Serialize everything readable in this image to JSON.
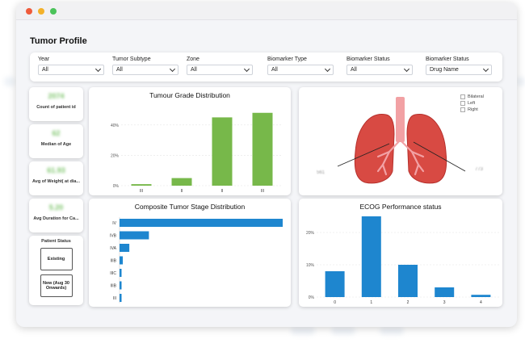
{
  "window": {
    "dots": [
      "#ef5b3b",
      "#f3b12a",
      "#4bc35a"
    ]
  },
  "page": {
    "title": "Tumor Profile"
  },
  "filters": [
    {
      "label": "Year",
      "value": "All"
    },
    {
      "label": "Tumor Subtype",
      "value": "All"
    },
    {
      "label": "Zone",
      "value": "All"
    },
    {
      "label": "Biomarker Type",
      "value": "All"
    },
    {
      "label": "Biomarker Status",
      "value": "All"
    },
    {
      "label": "Biomarker Status",
      "value": "Drug Name"
    }
  ],
  "kpis": [
    {
      "value": "2074",
      "label": "Count of patient id"
    },
    {
      "value": "62",
      "label": "Median of Age"
    },
    {
      "value": "61.93",
      "label": "Avg of Weight( at dia..."
    },
    {
      "value": "5.20",
      "label": "Avg Duration for Ca..."
    }
  ],
  "patient_status": {
    "title": "Patient Status",
    "buttons": [
      "Existing",
      "New (Aug 30 Onwards)"
    ]
  },
  "lung_panel": {
    "legend": [
      "Bilateral",
      "Left",
      "Right"
    ],
    "side_labels": [
      "561",
      "773"
    ],
    "colors": {
      "lung": "#d84a43",
      "lung_dark": "#b6302c",
      "trachea": "#f2a1a4"
    }
  },
  "colors": {
    "green": "#77b84a",
    "blue": "#1e86cf",
    "grid": "#e4e4e4"
  },
  "chart_data": [
    {
      "type": "bar",
      "title": "Tumour Grade Distribution",
      "categories": [
        "III",
        "II",
        "II",
        "III"
      ],
      "values": [
        1,
        5,
        45,
        48
      ],
      "ylim": [
        0,
        50
      ],
      "yticks": [
        0,
        20,
        40
      ],
      "ytick_labels": [
        "0%",
        "20%",
        "40%"
      ],
      "xlabel": "",
      "ylabel": "",
      "grid": true
    },
    {
      "type": "bar",
      "orientation": "horizontal",
      "title": "Composite Tumor Stage Distribution",
      "categories": [
        "IV",
        "IVB",
        "IVA",
        "IIIB",
        "IIIC",
        "IIIB",
        "III"
      ],
      "values": [
        100,
        18,
        6,
        2,
        1,
        1,
        1
      ],
      "xlabel": "",
      "ylabel": "",
      "grid": false
    },
    {
      "type": "bar",
      "title": "ECOG Performance status",
      "categories": [
        "0",
        "1",
        "2",
        "3",
        "4"
      ],
      "values": [
        8,
        25,
        10,
        3,
        0.7
      ],
      "ylim": [
        0,
        25
      ],
      "yticks": [
        0,
        10,
        20
      ],
      "ytick_labels": [
        "0%",
        "10%",
        "20%"
      ],
      "xlabel": "",
      "ylabel": "",
      "grid": true
    }
  ]
}
